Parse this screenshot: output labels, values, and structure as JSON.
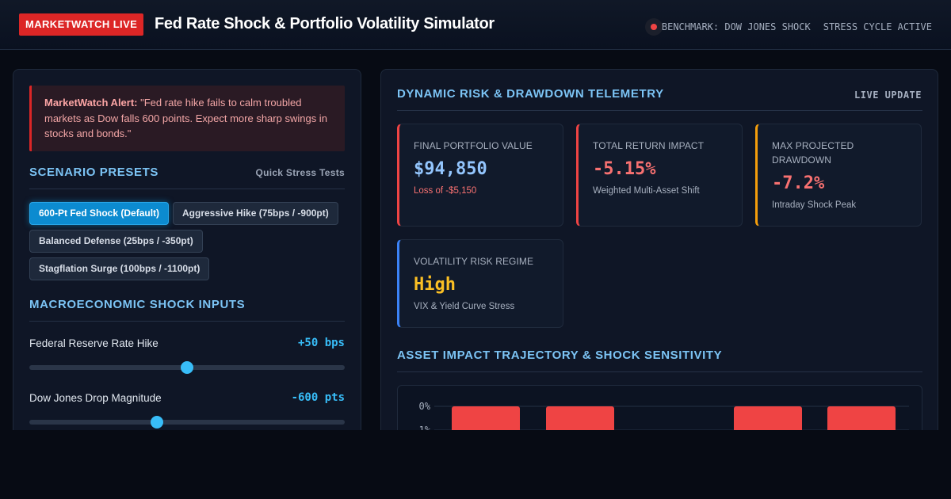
{
  "header": {
    "badge": "MARKETWATCH LIVE",
    "title": "Fed Rate Shock & Portfolio Volatility Simulator",
    "benchmark": "BENCHMARK: DOW JONES SHOCK",
    "cycle": "STRESS CYCLE ACTIVE",
    "status_color": "#ef4444"
  },
  "alert": {
    "label": "MarketWatch Alert:",
    "text": " \"Fed rate hike fails to calm troubled markets as Dow falls 600 points. Expect more sharp swings in stocks and bonds.\""
  },
  "presets": {
    "title": "SCENARIO PRESETS",
    "subtitle": "Quick Stress Tests",
    "items": [
      {
        "label": "600-Pt Fed Shock (Default)",
        "active": true
      },
      {
        "label": "Aggressive Hike (75bps / -900pt)",
        "active": false
      },
      {
        "label": "Balanced Defense (25bps / -350pt)",
        "active": false
      },
      {
        "label": "Stagflation Surge (100bps / -1100pt)",
        "active": false
      }
    ]
  },
  "inputs": {
    "title": "MACROECONOMIC SHOCK INPUTS",
    "rate": {
      "label": "Federal Reserve Rate Hike",
      "value": "+50 bps",
      "level": 0.5
    },
    "dow": {
      "label": "Dow Jones Drop Magnitude",
      "value": "-600 pts",
      "level": 0.405
    }
  },
  "telemetry": {
    "title": "DYNAMIC RISK & DRAWDOWN TELEMETRY",
    "live": "LIVE UPDATE",
    "cards": [
      {
        "label": "FINAL PORTFOLIO VALUE",
        "value": "$94,850",
        "note": "Loss of -$5,150",
        "accent": "#ef4444",
        "value_color": "#93c5fd",
        "note_color": "#f87171"
      },
      {
        "label": "TOTAL RETURN IMPACT",
        "value": "-5.15%",
        "note": "Weighted Multi-Asset Shift",
        "accent": "#ef4444",
        "value_color": "#f87171",
        "note_color": "#a7b0bf"
      },
      {
        "label": "MAX PROJECTED DRAWDOWN",
        "value": "-7.2%",
        "note": "Intraday Shock Peak",
        "accent": "#f59e0b",
        "value_color": "#f87171",
        "note_color": "#a7b0bf"
      },
      {
        "label": "VOLATILITY RISK REGIME",
        "value": "High",
        "note": "VIX & Yield Curve Stress",
        "accent": "#3b82f6",
        "value_color": "#fbbf24",
        "note_color": "#a7b0bf"
      }
    ]
  },
  "chart": {
    "title": "ASSET IMPACT TRAJECTORY & SHOCK SENSITIVITY"
  },
  "chart_data": {
    "type": "bar",
    "y_ticks": [
      "0%",
      "-1%"
    ],
    "bar_color": "#ef4444"
  }
}
